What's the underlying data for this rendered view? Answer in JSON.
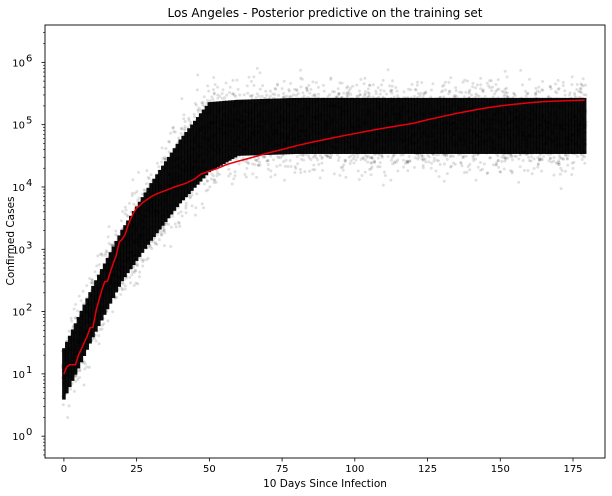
{
  "chart_data": {
    "type": "scatter",
    "title": "Los Angeles - Posterior predictive on the training set",
    "xlabel": "10 Days Since Infection",
    "ylabel": "Confirmed Cases",
    "xlim": [
      -6.5,
      186
    ],
    "ylim_log10": [
      -0.35,
      6.6
    ],
    "y_scale": "log",
    "grid": false,
    "x_ticks": [
      {
        "value": 0,
        "label": "0"
      },
      {
        "value": 25,
        "label": "25"
      },
      {
        "value": 50,
        "label": "50"
      },
      {
        "value": 75,
        "label": "75"
      },
      {
        "value": 100,
        "label": "100"
      },
      {
        "value": 125,
        "label": "125"
      },
      {
        "value": 150,
        "label": "150"
      },
      {
        "value": 175,
        "label": "175"
      }
    ],
    "y_ticks": [
      {
        "value": 1,
        "base": "10",
        "exp": "0"
      },
      {
        "value": 10,
        "base": "10",
        "exp": "1"
      },
      {
        "value": 100,
        "base": "10",
        "exp": "2"
      },
      {
        "value": 1000,
        "base": "10",
        "exp": "3"
      },
      {
        "value": 10000,
        "base": "10",
        "exp": "4"
      },
      {
        "value": 100000,
        "base": "10",
        "exp": "5"
      },
      {
        "value": 1000000,
        "base": "10",
        "exp": "6"
      }
    ],
    "series": [
      {
        "kind": "posterior-predictive-samples",
        "color": "#000000",
        "x_range": [
          0,
          179
        ],
        "band_median_log10": [
          [
            0,
            1.0
          ],
          [
            10,
            2.0
          ],
          [
            20,
            2.9
          ],
          [
            30,
            3.6
          ],
          [
            40,
            4.25
          ],
          [
            50,
            4.8
          ],
          [
            60,
            4.95
          ],
          [
            80,
            4.98
          ],
          [
            100,
            4.98
          ],
          [
            140,
            4.98
          ],
          [
            179,
            4.98
          ]
        ],
        "band_halfwidth_log10": [
          [
            0,
            0.55
          ],
          [
            20,
            0.55
          ],
          [
            50,
            0.75
          ],
          [
            60,
            0.6
          ],
          [
            179,
            0.6
          ]
        ]
      },
      {
        "kind": "observed",
        "color": "#e8000b",
        "points": [
          [
            0,
            10
          ],
          [
            1,
            13
          ],
          [
            2,
            14
          ],
          [
            3,
            14
          ],
          [
            4,
            14
          ],
          [
            5,
            20
          ],
          [
            6,
            25
          ],
          [
            7,
            32
          ],
          [
            8,
            40
          ],
          [
            9,
            55
          ],
          [
            10,
            56
          ],
          [
            11,
            100
          ],
          [
            12,
            150
          ],
          [
            13,
            220
          ],
          [
            14,
            300
          ],
          [
            15,
            310
          ],
          [
            16,
            440
          ],
          [
            17,
            600
          ],
          [
            18,
            800
          ],
          [
            19,
            1300
          ],
          [
            20,
            1450
          ],
          [
            21,
            1700
          ],
          [
            22,
            2400
          ],
          [
            23,
            3100
          ],
          [
            24,
            3900
          ],
          [
            25,
            4600
          ],
          [
            26,
            5000
          ],
          [
            27,
            5600
          ],
          [
            28,
            6000
          ],
          [
            30,
            7000
          ],
          [
            32,
            7800
          ],
          [
            35,
            8800
          ],
          [
            38,
            10000
          ],
          [
            42,
            11500
          ],
          [
            45,
            13500
          ],
          [
            47,
            16000
          ],
          [
            50,
            18000
          ],
          [
            53,
            20000
          ],
          [
            56,
            23000
          ],
          [
            60,
            26000
          ],
          [
            65,
            30000
          ],
          [
            70,
            35000
          ],
          [
            75,
            40000
          ],
          [
            80,
            46000
          ],
          [
            85,
            52000
          ],
          [
            90,
            58000
          ],
          [
            95,
            65000
          ],
          [
            100,
            72000
          ],
          [
            105,
            80000
          ],
          [
            110,
            88000
          ],
          [
            115,
            96000
          ],
          [
            120,
            105000
          ],
          [
            125,
            120000
          ],
          [
            130,
            135000
          ],
          [
            135,
            152000
          ],
          [
            140,
            168000
          ],
          [
            145,
            185000
          ],
          [
            150,
            200000
          ],
          [
            155,
            213000
          ],
          [
            160,
            225000
          ],
          [
            165,
            234000
          ],
          [
            170,
            240000
          ],
          [
            175,
            245000
          ],
          [
            179,
            248000
          ]
        ]
      }
    ]
  }
}
